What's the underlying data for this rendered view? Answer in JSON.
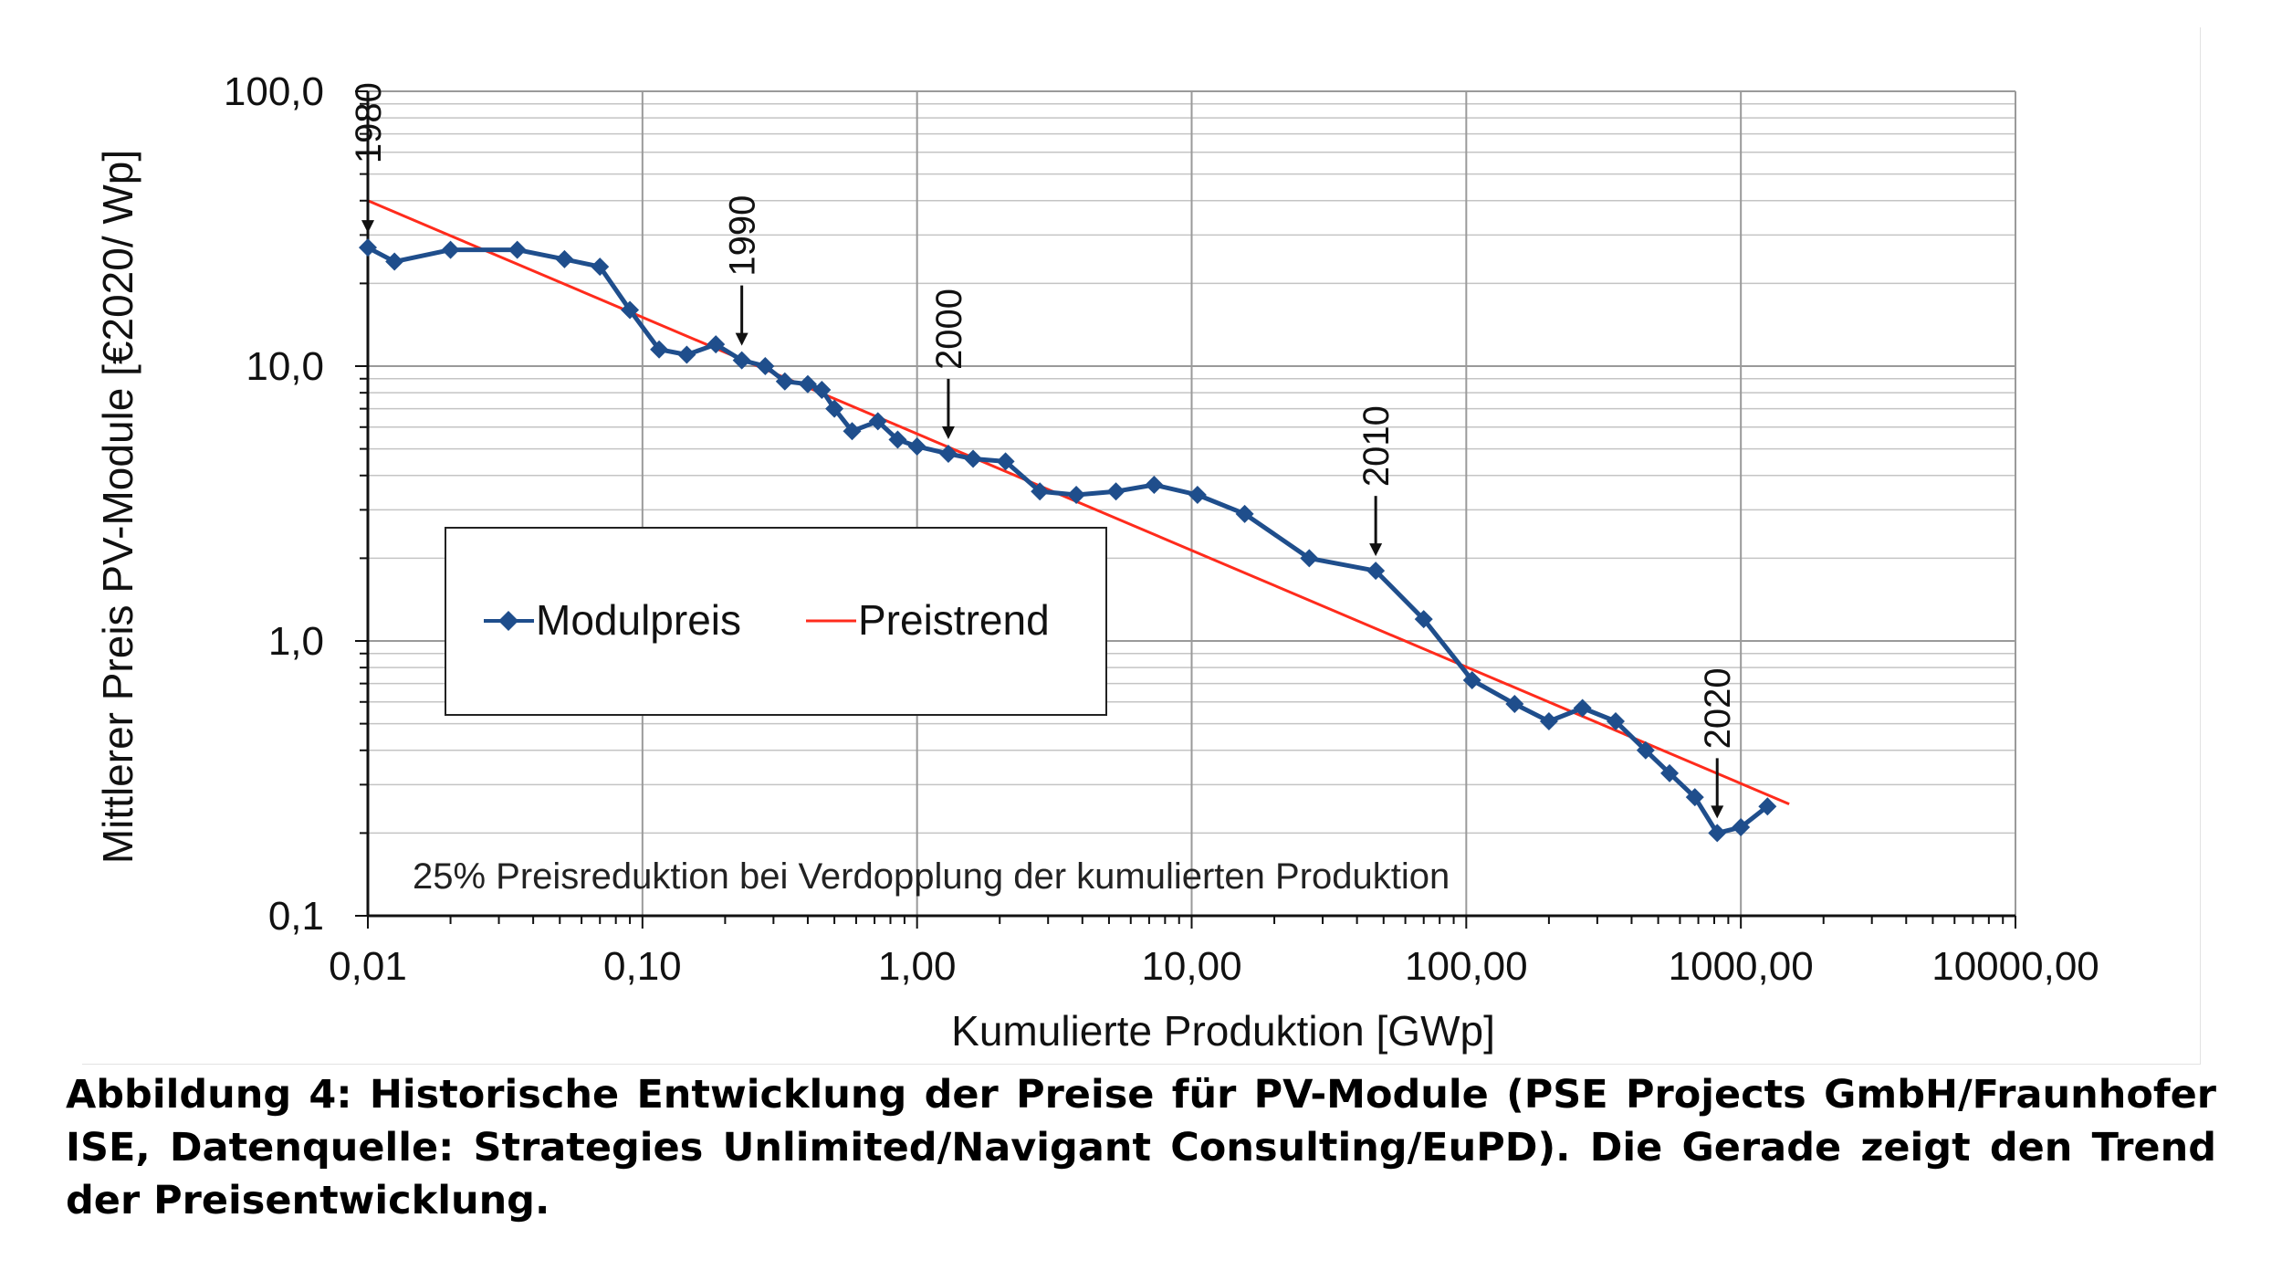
{
  "chart_data": {
    "type": "line",
    "title": "",
    "xlabel": "Kumulierte Produktion [GWp]",
    "ylabel": "Mittlerer Preis PV-Module [€2020/ Wp]",
    "xscale": "log",
    "yscale": "log",
    "xlim": [
      0.01,
      10000
    ],
    "ylim": [
      0.1,
      100
    ],
    "x_tick_labels": [
      "0,01",
      "0,10",
      "1,00",
      "10,00",
      "100,00",
      "1000,00",
      "10000,00"
    ],
    "y_tick_labels": [
      "0,1",
      "1,0",
      "10,0",
      "100,0"
    ],
    "series": [
      {
        "name": "Modulpreis",
        "color": "#1f4e8c",
        "marker": "diamond",
        "x": [
          0.01,
          0.0125,
          0.02,
          0.035,
          0.052,
          0.07,
          0.09,
          0.115,
          0.145,
          0.185,
          0.23,
          0.28,
          0.33,
          0.4,
          0.45,
          0.5,
          0.58,
          0.72,
          0.85,
          1.0,
          1.3,
          1.6,
          2.1,
          2.8,
          3.8,
          5.3,
          7.3,
          10.5,
          15.6,
          26.8,
          46.8,
          70,
          105,
          150,
          200,
          265,
          350,
          450,
          550,
          680,
          820,
          1000,
          1250
        ],
        "y": [
          27,
          24,
          26.5,
          26.5,
          24.5,
          23,
          16,
          11.5,
          11,
          12,
          10.5,
          10,
          8.8,
          8.6,
          8.2,
          7,
          5.8,
          6.3,
          5.4,
          5.1,
          4.8,
          4.6,
          4.5,
          3.5,
          3.4,
          3.5,
          3.7,
          3.4,
          2.9,
          2.0,
          1.8,
          1.2,
          0.72,
          0.59,
          0.51,
          0.57,
          0.51,
          0.4,
          0.33,
          0.27,
          0.2,
          0.21,
          0.25
        ]
      },
      {
        "name": "Preistrend",
        "color": "#ff2b1c",
        "x": [
          0.01,
          1500
        ],
        "y": [
          40,
          0.255
        ]
      }
    ],
    "annotations": [
      {
        "text": "1980",
        "x": 0.01,
        "y": 27
      },
      {
        "text": "1990",
        "x": 0.23,
        "y": 10.5
      },
      {
        "text": "2000",
        "x": 1.3,
        "y": 4.8
      },
      {
        "text": "2010",
        "x": 46.8,
        "y": 1.8
      },
      {
        "text": "2020",
        "x": 820,
        "y": 0.2
      }
    ],
    "note": "25% Preisreduktion bei Verdopplung der kumulierten Produktion",
    "legend": {
      "placement": "center-left",
      "entries": [
        "Modulpreis",
        "Preistrend"
      ]
    },
    "grid": true
  },
  "caption": "Abbildung 4: Historische Entwicklung der Preise für PV-Module (PSE Projects GmbH/Fraunhofer ISE, Datenquelle: Strategies Unlimited/Navigant Consulting/EuPD). Die Gerade zeigt den Trend der Preisentwicklung."
}
